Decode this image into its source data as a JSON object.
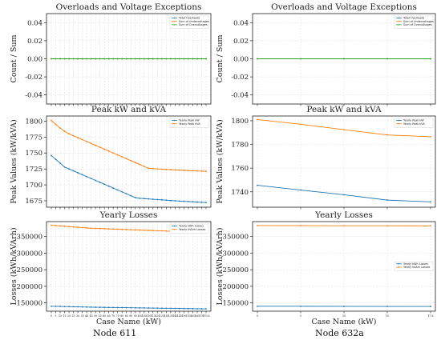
{
  "colors": {
    "blue": "#1f77b4",
    "orange": "#ff7f0e",
    "green": "#2ca02c",
    "grid": "#dddddd"
  },
  "captions": {
    "left": "Node 611",
    "right": "Node 632a"
  },
  "chart_data": [
    {
      "id": "l1",
      "type": "line",
      "title": "Overloads and Voltage Exceptions",
      "xlabel": "",
      "ylabel": "Count / Sum",
      "ylim": [
        -0.05,
        0.05
      ],
      "yticks": [
        -0.04,
        -0.02,
        0.0,
        0.02,
        0.04
      ],
      "grid": true,
      "legend": "top-right",
      "show_xticks": false,
      "categories": [
        "0",
        "5",
        "10",
        "15",
        "20",
        "25",
        "30",
        "35",
        "40",
        "45",
        "50",
        "55",
        "60",
        "65",
        "70",
        "75",
        "80",
        "85",
        "90",
        "95",
        "100",
        "105",
        "110",
        "115",
        "120",
        "125",
        "130",
        "135",
        "140",
        "145",
        "150",
        "155",
        "160",
        "165",
        "170",
        "170.6"
      ],
      "series": [
        {
          "name": "Total Overloads",
          "color": "blue",
          "values": [
            0,
            0,
            0,
            0,
            0,
            0,
            0,
            0,
            0,
            0,
            0,
            0,
            0,
            0,
            0,
            0,
            0,
            0,
            0,
            0,
            0,
            0,
            0,
            0,
            0,
            0,
            0,
            0,
            0,
            0,
            0,
            0,
            0,
            0,
            0,
            0
          ]
        },
        {
          "name": "Sum of Undervoltages",
          "color": "orange",
          "values": [
            0,
            0,
            0,
            0,
            0,
            0,
            0,
            0,
            0,
            0,
            0,
            0,
            0,
            0,
            0,
            0,
            0,
            0,
            0,
            0,
            0,
            0,
            0,
            0,
            0,
            0,
            0,
            0,
            0,
            0,
            0,
            0,
            0,
            0,
            0,
            0
          ]
        },
        {
          "name": "Sum of Overvoltages",
          "color": "green",
          "values": [
            0,
            0,
            0,
            0,
            0,
            0,
            0,
            0,
            0,
            0,
            0,
            0,
            0,
            0,
            0,
            0,
            0,
            0,
            0,
            0,
            0,
            0,
            0,
            0,
            0,
            0,
            0,
            0,
            0,
            0,
            0,
            0,
            0,
            0,
            0,
            0
          ]
        }
      ]
    },
    {
      "id": "l2",
      "type": "line",
      "title": "Peak kW and kVA",
      "xlabel": "",
      "ylabel": "Peak Values (kW/kVA)",
      "ylim": [
        1665,
        1808
      ],
      "yticks": [
        1675,
        1700,
        1725,
        1750,
        1775,
        1800
      ],
      "grid": true,
      "legend": "top-right",
      "show_xticks": false,
      "categories": [
        "0",
        "5",
        "10",
        "15",
        "20",
        "25",
        "30",
        "35",
        "40",
        "45",
        "50",
        "55",
        "60",
        "65",
        "70",
        "75",
        "80",
        "85",
        "90",
        "95",
        "100",
        "105",
        "110",
        "115",
        "120",
        "125",
        "130",
        "135",
        "140",
        "145",
        "150",
        "155",
        "160",
        "165",
        "170",
        "170.6"
      ],
      "series": [
        {
          "name": "Yearly Peak kW",
          "color": "blue",
          "values": [
            1746,
            1740,
            1734,
            1728,
            1725,
            1722,
            1719,
            1716,
            1713,
            1710,
            1707,
            1704,
            1701,
            1698,
            1695,
            1692,
            1689,
            1686,
            1683,
            1680,
            1679,
            1678.5,
            1678,
            1677.5,
            1677,
            1676.5,
            1676,
            1675.5,
            1675,
            1674.6,
            1674.2,
            1673.8,
            1673.4,
            1673,
            1672.6,
            1672.3
          ]
        },
        {
          "name": "Yearly Peak kVA",
          "color": "orange",
          "values": [
            1801,
            1795,
            1789,
            1784,
            1780,
            1777,
            1774,
            1771,
            1768,
            1765,
            1762,
            1759,
            1756,
            1753,
            1750,
            1747,
            1744,
            1741,
            1738,
            1735,
            1732,
            1729,
            1726,
            1725.5,
            1725,
            1724.6,
            1724.2,
            1723.8,
            1723.4,
            1723,
            1722.7,
            1722.4,
            1722.1,
            1721.8,
            1721.5,
            1721.3
          ]
        }
      ]
    },
    {
      "id": "l3",
      "type": "line",
      "title": "Yearly Losses",
      "xlabel": "Case Name (kW)",
      "ylabel": "Losses (kWh/kVArh)",
      "ylim": [
        125000,
        395000
      ],
      "yticks": [
        150000,
        200000,
        250000,
        300000,
        350000
      ],
      "grid": true,
      "legend": "top-right",
      "show_xticks": true,
      "categories": [
        "0",
        "5",
        "10",
        "15",
        "20",
        "25",
        "30",
        "35",
        "40",
        "45",
        "50",
        "55",
        "60",
        "65",
        "70",
        "75",
        "80",
        "85",
        "90",
        "95",
        "100",
        "105",
        "110",
        "115",
        "120",
        "125",
        "130",
        "135",
        "140",
        "145",
        "150",
        "155",
        "160",
        "165",
        "170",
        "170.6"
      ],
      "series": [
        {
          "name": "Yearly kWh Losses",
          "color": "blue",
          "values": [
            140000,
            139700,
            139400,
            139100,
            138800,
            138500,
            138200,
            137900,
            137600,
            137300,
            137000,
            136800,
            136600,
            136400,
            136200,
            136000,
            135800,
            135600,
            135400,
            135200,
            135000,
            134800,
            134600,
            134400,
            134200,
            134000,
            133800,
            133600,
            133400,
            133200,
            133000,
            132800,
            132600,
            132400,
            132200,
            132100
          ]
        },
        {
          "name": "Yearly kVArh Losses",
          "color": "orange",
          "values": [
            384000,
            383000,
            382000,
            381000,
            380000,
            379000,
            378000,
            377000,
            376000,
            375000,
            374500,
            374000,
            373500,
            373000,
            372500,
            372000,
            371500,
            371000,
            370500,
            370000,
            369500,
            369000,
            368500,
            368000,
            367500,
            367000,
            366500,
            366000,
            365500,
            365000,
            364500,
            364000,
            363500,
            363000,
            362500,
            362300
          ]
        }
      ]
    },
    {
      "id": "r1",
      "type": "line",
      "title": "Overloads and Voltage Exceptions",
      "xlabel": "",
      "ylabel": "Count / Sum",
      "ylim": [
        -0.05,
        0.05
      ],
      "yticks": [
        -0.04,
        -0.02,
        0.0,
        0.02,
        0.04
      ],
      "grid": true,
      "legend": "top-right",
      "show_xticks": false,
      "categories": [
        "0",
        "5",
        "10",
        "15",
        "17.6"
      ],
      "series": [
        {
          "name": "Total Overloads",
          "color": "blue",
          "values": [
            0,
            0,
            0,
            0,
            0
          ]
        },
        {
          "name": "Sum of Undervoltages",
          "color": "orange",
          "values": [
            0,
            0,
            0,
            0,
            0
          ]
        },
        {
          "name": "Sum of Overvoltages",
          "color": "green",
          "values": [
            0,
            0,
            0,
            0,
            0
          ]
        }
      ]
    },
    {
      "id": "r2",
      "type": "line",
      "title": "Peak kW and kVA",
      "xlabel": "",
      "ylabel": "Peak Values (kW/kVA)",
      "ylim": [
        1727,
        1804
      ],
      "yticks": [
        1740,
        1760,
        1780,
        1800
      ],
      "grid": true,
      "legend": "top-right",
      "show_xticks": false,
      "categories": [
        "0",
        "5",
        "10",
        "15",
        "17.6"
      ],
      "series": [
        {
          "name": "Yearly Peak kW",
          "color": "blue",
          "values": [
            1745.5,
            1741.5,
            1737.5,
            1733,
            1731.5
          ]
        },
        {
          "name": "Yearly Peak kVA",
          "color": "orange",
          "values": [
            1801,
            1797,
            1792.5,
            1788,
            1786.5
          ]
        }
      ]
    },
    {
      "id": "r3",
      "type": "line",
      "title": "Yearly Losses",
      "xlabel": "Case Name (kW)",
      "ylabel": "Losses (kWh/kVArh)",
      "ylim": [
        125000,
        395000
      ],
      "yticks": [
        150000,
        200000,
        250000,
        300000,
        350000
      ],
      "grid": true,
      "legend": "center-right",
      "show_xticks": true,
      "categories": [
        "0",
        "5",
        "10",
        "15",
        "17.6"
      ],
      "series": [
        {
          "name": "Yearly kWh Losses",
          "color": "blue",
          "values": [
            140000,
            139800,
            139600,
            139400,
            139300
          ]
        },
        {
          "name": "Yearly kVArh Losses",
          "color": "orange",
          "values": [
            383000,
            382800,
            382600,
            382400,
            382300
          ]
        }
      ]
    }
  ]
}
